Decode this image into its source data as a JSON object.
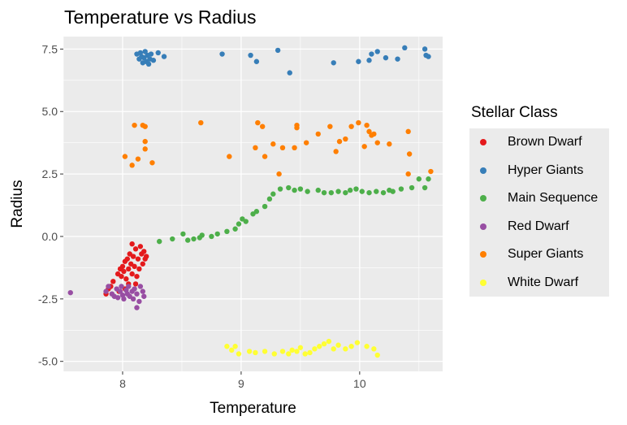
{
  "chart_data": {
    "type": "scatter",
    "title": "Temperature vs Radius",
    "xlabel": "Temperature",
    "ylabel": "Radius",
    "xlim": [
      7.5,
      10.7
    ],
    "ylim": [
      -5.4,
      8.0
    ],
    "xticks": [
      8,
      9,
      10
    ],
    "yticks": [
      -5.0,
      -2.5,
      0.0,
      2.5,
      5.0,
      7.5
    ],
    "xtick_labels": [
      "8",
      "9",
      "10"
    ],
    "ytick_labels": [
      "-5.0",
      "-2.5",
      "0.0",
      "2.5",
      "5.0",
      "7.5"
    ],
    "grid": true,
    "legend_title": "Stellar Class",
    "legend_position": "right",
    "series": [
      {
        "name": "Brown Dwarf",
        "color": "#E41A1C",
        "points": [
          [
            7.86,
            -2.3
          ],
          [
            7.88,
            -2.1
          ],
          [
            7.9,
            -2.0
          ],
          [
            7.92,
            -1.8
          ],
          [
            7.96,
            -1.5
          ],
          [
            7.98,
            -1.3
          ],
          [
            7.99,
            -1.6
          ],
          [
            8.0,
            -1.2
          ],
          [
            8.01,
            -1.4
          ],
          [
            8.02,
            -1.0
          ],
          [
            8.03,
            -1.7
          ],
          [
            8.04,
            -0.9
          ],
          [
            8.05,
            -1.3
          ],
          [
            8.05,
            -1.9
          ],
          [
            8.06,
            -0.7
          ],
          [
            8.07,
            -1.1
          ],
          [
            8.08,
            -0.3
          ],
          [
            8.08,
            -1.5
          ],
          [
            8.09,
            -0.8
          ],
          [
            8.1,
            -1.2
          ],
          [
            8.11,
            -0.5
          ],
          [
            8.12,
            -1.6
          ],
          [
            8.13,
            -0.9
          ],
          [
            8.14,
            -1.3
          ],
          [
            8.15,
            -0.4
          ],
          [
            8.16,
            -0.7
          ],
          [
            8.17,
            -1.1
          ],
          [
            8.18,
            -0.6
          ],
          [
            8.19,
            -0.9
          ],
          [
            8.2,
            -0.8
          ],
          [
            8.02,
            -2.1
          ],
          [
            7.97,
            -2.2
          ],
          [
            8.11,
            -1.9
          ]
        ]
      },
      {
        "name": "Hyper Giants",
        "color": "#377EB8",
        "points": [
          [
            8.12,
            7.3
          ],
          [
            8.14,
            7.1
          ],
          [
            8.15,
            7.35
          ],
          [
            8.16,
            7.2
          ],
          [
            8.17,
            6.95
          ],
          [
            8.18,
            7.15
          ],
          [
            8.19,
            7.4
          ],
          [
            8.2,
            7.0
          ],
          [
            8.21,
            7.25
          ],
          [
            8.22,
            6.9
          ],
          [
            8.23,
            7.1
          ],
          [
            8.24,
            7.3
          ],
          [
            8.26,
            7.05
          ],
          [
            8.3,
            7.35
          ],
          [
            8.35,
            7.2
          ],
          [
            8.84,
            7.3
          ],
          [
            9.08,
            7.25
          ],
          [
            9.13,
            7.0
          ],
          [
            9.31,
            7.45
          ],
          [
            9.41,
            6.55
          ],
          [
            9.78,
            6.95
          ],
          [
            9.99,
            7.0
          ],
          [
            10.08,
            7.05
          ],
          [
            10.1,
            7.3
          ],
          [
            10.15,
            7.4
          ],
          [
            10.22,
            7.15
          ],
          [
            10.32,
            7.1
          ],
          [
            10.38,
            7.55
          ],
          [
            10.55,
            7.5
          ],
          [
            10.56,
            7.25
          ],
          [
            10.58,
            7.2
          ]
        ]
      },
      {
        "name": "Main Sequence",
        "color": "#4DAF4A",
        "points": [
          [
            8.31,
            -0.2
          ],
          [
            8.42,
            -0.1
          ],
          [
            8.51,
            0.1
          ],
          [
            8.55,
            -0.15
          ],
          [
            8.6,
            -0.1
          ],
          [
            8.65,
            -0.05
          ],
          [
            8.67,
            0.05
          ],
          [
            8.75,
            0.0
          ],
          [
            8.8,
            0.1
          ],
          [
            8.88,
            0.2
          ],
          [
            8.95,
            0.3
          ],
          [
            8.98,
            0.5
          ],
          [
            9.01,
            0.7
          ],
          [
            9.04,
            0.6
          ],
          [
            9.1,
            0.9
          ],
          [
            9.13,
            1.0
          ],
          [
            9.2,
            1.2
          ],
          [
            9.24,
            1.5
          ],
          [
            9.27,
            1.7
          ],
          [
            9.33,
            1.9
          ],
          [
            9.4,
            1.95
          ],
          [
            9.45,
            1.85
          ],
          [
            9.5,
            1.9
          ],
          [
            9.56,
            1.8
          ],
          [
            9.65,
            1.85
          ],
          [
            9.7,
            1.75
          ],
          [
            9.76,
            1.75
          ],
          [
            9.82,
            1.8
          ],
          [
            9.88,
            1.75
          ],
          [
            9.92,
            1.85
          ],
          [
            9.97,
            1.9
          ],
          [
            10.02,
            1.8
          ],
          [
            10.08,
            1.75
          ],
          [
            10.14,
            1.8
          ],
          [
            10.2,
            1.75
          ],
          [
            10.25,
            1.85
          ],
          [
            10.28,
            1.8
          ],
          [
            10.35,
            1.9
          ],
          [
            10.44,
            1.95
          ],
          [
            10.5,
            2.3
          ],
          [
            10.55,
            1.95
          ],
          [
            10.58,
            2.3
          ]
        ]
      },
      {
        "name": "Red Dwarf",
        "color": "#984EA3",
        "points": [
          [
            7.56,
            -2.25
          ],
          [
            7.86,
            -2.2
          ],
          [
            7.88,
            -2.0
          ],
          [
            7.91,
            -2.3
          ],
          [
            7.93,
            -2.4
          ],
          [
            7.95,
            -2.1
          ],
          [
            7.96,
            -2.45
          ],
          [
            7.98,
            -2.2
          ],
          [
            7.99,
            -2.0
          ],
          [
            8.0,
            -2.35
          ],
          [
            8.01,
            -2.5
          ],
          [
            8.03,
            -2.15
          ],
          [
            8.04,
            -2.3
          ],
          [
            8.05,
            -2.0
          ],
          [
            8.06,
            -2.4
          ],
          [
            8.08,
            -2.2
          ],
          [
            8.09,
            -2.5
          ],
          [
            8.1,
            -2.1
          ],
          [
            8.12,
            -2.85
          ],
          [
            8.12,
            -2.3
          ],
          [
            8.14,
            -2.6
          ],
          [
            8.15,
            -2.0
          ],
          [
            8.17,
            -2.2
          ],
          [
            8.18,
            -2.4
          ]
        ]
      },
      {
        "name": "Super Giants",
        "color": "#FF7F00",
        "points": [
          [
            8.02,
            3.2
          ],
          [
            8.08,
            2.85
          ],
          [
            8.1,
            4.45
          ],
          [
            8.13,
            3.1
          ],
          [
            8.17,
            4.45
          ],
          [
            8.19,
            3.5
          ],
          [
            8.19,
            4.4
          ],
          [
            8.19,
            3.8
          ],
          [
            8.25,
            2.95
          ],
          [
            8.66,
            4.55
          ],
          [
            8.9,
            3.2
          ],
          [
            9.14,
            4.55
          ],
          [
            9.18,
            4.4
          ],
          [
            9.12,
            3.55
          ],
          [
            9.2,
            3.2
          ],
          [
            9.27,
            3.7
          ],
          [
            9.32,
            2.5
          ],
          [
            9.35,
            3.55
          ],
          [
            9.47,
            4.45
          ],
          [
            9.47,
            4.35
          ],
          [
            9.45,
            3.55
          ],
          [
            9.55,
            3.75
          ],
          [
            9.65,
            4.1
          ],
          [
            9.75,
            4.4
          ],
          [
            9.8,
            3.4
          ],
          [
            9.83,
            3.8
          ],
          [
            9.88,
            3.9
          ],
          [
            9.93,
            4.4
          ],
          [
            9.99,
            4.55
          ],
          [
            10.04,
            3.6
          ],
          [
            10.06,
            4.45
          ],
          [
            10.08,
            4.2
          ],
          [
            10.1,
            4.05
          ],
          [
            10.12,
            4.1
          ],
          [
            10.15,
            3.75
          ],
          [
            10.25,
            3.7
          ],
          [
            10.41,
            4.2
          ],
          [
            10.42,
            3.3
          ],
          [
            10.41,
            2.5
          ],
          [
            10.6,
            2.6
          ]
        ]
      },
      {
        "name": "White Dwarf",
        "color": "#FFFF33",
        "points": [
          [
            8.88,
            -4.4
          ],
          [
            8.92,
            -4.55
          ],
          [
            8.95,
            -4.4
          ],
          [
            8.98,
            -4.7
          ],
          [
            9.07,
            -4.6
          ],
          [
            9.12,
            -4.65
          ],
          [
            9.2,
            -4.6
          ],
          [
            9.28,
            -4.7
          ],
          [
            9.35,
            -4.6
          ],
          [
            9.4,
            -4.7
          ],
          [
            9.43,
            -4.55
          ],
          [
            9.47,
            -4.6
          ],
          [
            9.5,
            -4.45
          ],
          [
            9.54,
            -4.7
          ],
          [
            9.58,
            -4.65
          ],
          [
            9.62,
            -4.5
          ],
          [
            9.66,
            -4.4
          ],
          [
            9.7,
            -4.3
          ],
          [
            9.74,
            -4.2
          ],
          [
            9.78,
            -4.5
          ],
          [
            9.82,
            -4.35
          ],
          [
            9.88,
            -4.5
          ],
          [
            9.93,
            -4.4
          ],
          [
            9.98,
            -4.25
          ],
          [
            10.06,
            -4.4
          ],
          [
            10.12,
            -4.5
          ],
          [
            10.15,
            -4.75
          ]
        ]
      }
    ]
  }
}
